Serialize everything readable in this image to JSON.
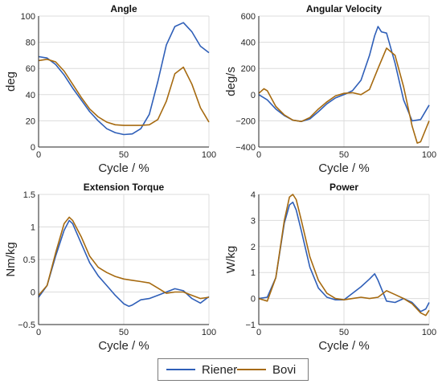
{
  "colors": {
    "riener": "#2f5fb8",
    "bovi": "#a66a10",
    "axis": "#262626",
    "grid": "#dcdcdc"
  },
  "legend": {
    "items": [
      "Riener",
      "Bovi"
    ]
  },
  "chart_data": [
    {
      "type": "line",
      "title": "Angle",
      "xlabel": "Cycle / %",
      "ylabel": "deg",
      "xlim": [
        0,
        100
      ],
      "ylim": [
        0,
        100
      ],
      "xticks": [
        "0",
        "50",
        "100"
      ],
      "yticks": [
        "0",
        "20",
        "40",
        "60",
        "80",
        "100"
      ],
      "grid": true,
      "series": [
        {
          "name": "Riener",
          "x": [
            0,
            5,
            10,
            15,
            20,
            25,
            30,
            35,
            40,
            45,
            50,
            55,
            60,
            65,
            70,
            75,
            80,
            85,
            90,
            95,
            100
          ],
          "y": [
            69,
            68,
            63,
            55,
            45,
            36,
            27,
            20,
            14,
            11,
            9.5,
            10,
            14,
            25,
            50,
            78,
            92,
            95,
            88,
            77,
            72
          ]
        },
        {
          "name": "Bovi",
          "x": [
            0,
            5,
            10,
            15,
            20,
            25,
            30,
            35,
            40,
            45,
            50,
            55,
            60,
            65,
            70,
            75,
            80,
            85,
            90,
            95,
            100
          ],
          "y": [
            66,
            67,
            65,
            58,
            48,
            38,
            29,
            23,
            19,
            17,
            16.5,
            16.5,
            16.5,
            17,
            21,
            35,
            56,
            61,
            48,
            30,
            19
          ]
        }
      ]
    },
    {
      "type": "line",
      "title": "Angular Velocity",
      "xlabel": "Cycle / %",
      "ylabel": "deg/s",
      "xlim": [
        0,
        100
      ],
      "ylim": [
        -400,
        600
      ],
      "xticks": [
        "0",
        "50",
        "100"
      ],
      "yticks": [
        "−400",
        "−200",
        "0",
        "200",
        "400",
        "600"
      ],
      "grid": true,
      "series": [
        {
          "name": "Riener",
          "x": [
            0,
            5,
            10,
            15,
            20,
            25,
            30,
            35,
            40,
            45,
            50,
            55,
            60,
            65,
            68,
            70,
            72,
            75,
            80,
            85,
            90,
            95,
            100
          ],
          "y": [
            0,
            -40,
            -110,
            -160,
            -195,
            -205,
            -185,
            -130,
            -70,
            -25,
            0,
            30,
            110,
            300,
            450,
            520,
            480,
            470,
            240,
            -40,
            -200,
            -190,
            -80
          ]
        },
        {
          "name": "Bovi",
          "x": [
            0,
            3,
            5,
            10,
            15,
            20,
            25,
            30,
            35,
            40,
            45,
            50,
            55,
            60,
            65,
            70,
            75,
            80,
            85,
            90,
            93,
            95,
            100
          ],
          "y": [
            10,
            45,
            30,
            -90,
            -155,
            -195,
            -205,
            -175,
            -110,
            -55,
            -10,
            10,
            15,
            0,
            40,
            200,
            355,
            300,
            60,
            -240,
            -370,
            -360,
            -200
          ]
        }
      ]
    },
    {
      "type": "line",
      "title": "Extension Torque",
      "xlabel": "Cycle / %",
      "ylabel": "Nm/kg",
      "xlim": [
        0,
        100
      ],
      "ylim": [
        -0.5,
        1.5
      ],
      "xticks": [
        "0",
        "50",
        "100"
      ],
      "yticks": [
        "−0.5",
        "0",
        "0.5",
        "1",
        "1.5"
      ],
      "grid": true,
      "series": [
        {
          "name": "Riener",
          "x": [
            0,
            5,
            10,
            15,
            18,
            20,
            25,
            30,
            35,
            40,
            45,
            50,
            53,
            55,
            60,
            65,
            70,
            75,
            80,
            85,
            90,
            95,
            100
          ],
          "y": [
            -0.08,
            0.1,
            0.55,
            0.95,
            1.1,
            1.05,
            0.75,
            0.45,
            0.25,
            0.1,
            -0.05,
            -0.18,
            -0.22,
            -0.2,
            -0.12,
            -0.1,
            -0.05,
            0.0,
            0.05,
            0.02,
            -0.1,
            -0.17,
            -0.07
          ]
        },
        {
          "name": "Bovi",
          "x": [
            0,
            5,
            10,
            15,
            18,
            20,
            25,
            30,
            35,
            40,
            45,
            50,
            55,
            60,
            65,
            70,
            75,
            80,
            85,
            90,
            95,
            100
          ],
          "y": [
            -0.05,
            0.1,
            0.6,
            1.05,
            1.15,
            1.1,
            0.85,
            0.55,
            0.38,
            0.3,
            0.24,
            0.2,
            0.18,
            0.16,
            0.14,
            0.06,
            -0.02,
            0.0,
            0.0,
            -0.05,
            -0.1,
            -0.08
          ]
        }
      ]
    },
    {
      "type": "line",
      "title": "Power",
      "xlabel": "Cycle / %",
      "ylabel": "W/kg",
      "xlim": [
        0,
        100
      ],
      "ylim": [
        -1,
        4
      ],
      "xticks": [
        "0",
        "50",
        "100"
      ],
      "yticks": [
        "−1",
        "0",
        "1",
        "2",
        "3",
        "4"
      ],
      "grid": true,
      "series": [
        {
          "name": "Riener",
          "x": [
            0,
            5,
            10,
            15,
            18,
            20,
            22,
            25,
            30,
            35,
            40,
            45,
            50,
            55,
            60,
            65,
            68,
            70,
            75,
            80,
            85,
            90,
            95,
            98,
            100
          ],
          "y": [
            0,
            0.05,
            0.8,
            2.9,
            3.6,
            3.7,
            3.4,
            2.6,
            1.2,
            0.4,
            0.05,
            -0.05,
            -0.05,
            0.2,
            0.45,
            0.75,
            0.95,
            0.7,
            -0.1,
            -0.15,
            0.0,
            -0.15,
            -0.5,
            -0.4,
            -0.15
          ]
        },
        {
          "name": "Bovi",
          "x": [
            0,
            5,
            10,
            15,
            18,
            20,
            22,
            25,
            30,
            35,
            40,
            45,
            50,
            55,
            60,
            65,
            70,
            75,
            80,
            85,
            90,
            95,
            98,
            100
          ],
          "y": [
            0,
            -0.1,
            0.8,
            3.0,
            3.9,
            4.0,
            3.8,
            3.0,
            1.6,
            0.7,
            0.2,
            0.0,
            -0.05,
            0.0,
            0.05,
            0.0,
            0.05,
            0.3,
            0.15,
            0.0,
            -0.2,
            -0.55,
            -0.65,
            -0.45
          ]
        }
      ]
    }
  ]
}
